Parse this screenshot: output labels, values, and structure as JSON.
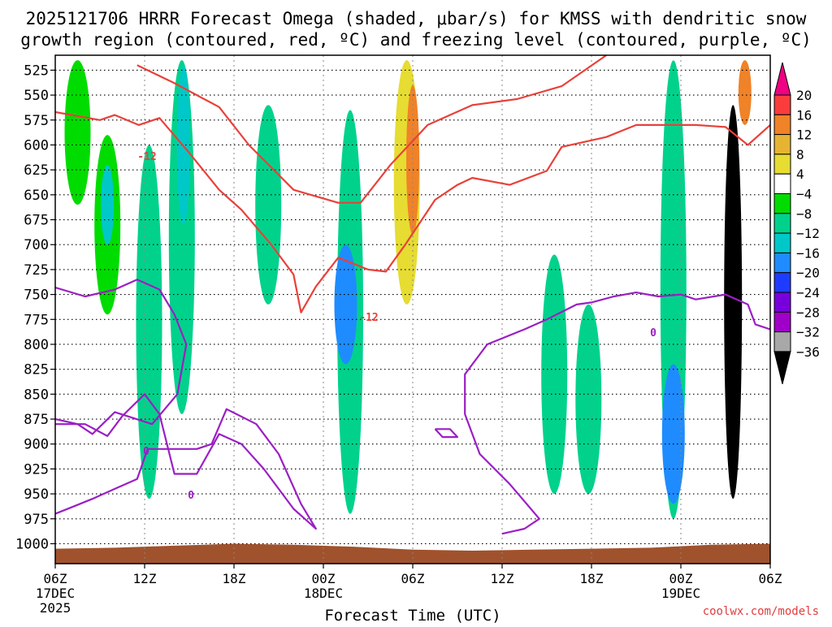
{
  "chart_data": {
    "type": "heatmap",
    "title_line1": "2025121706 HRRR Forecast Omega (shaded, μbar/s) for KMSS with dendritic snow",
    "title_line2": "growth region (contoured, red, ºC) and freezing level (contoured, purple, ºC)",
    "xlabel": "Forecast Time (UTC)",
    "credit": "coolwx.com/models",
    "y_axis": {
      "unit": "hPa",
      "range": [
        1020,
        510
      ],
      "ticks": [
        "525",
        "550",
        "575",
        "600",
        "625",
        "650",
        "675",
        "700",
        "725",
        "750",
        "775",
        "800",
        "825",
        "850",
        "875",
        "900",
        "925",
        "950",
        "975",
        "1000"
      ]
    },
    "x_axis": {
      "unit": "forecast hour",
      "range": [
        0,
        48
      ],
      "ticks": [
        {
          "hour": 0,
          "label": "06Z",
          "sub1": "17DEC",
          "sub2": "2025"
        },
        {
          "hour": 6,
          "label": "12Z",
          "sub1": "",
          "sub2": ""
        },
        {
          "hour": 12,
          "label": "18Z",
          "sub1": "",
          "sub2": ""
        },
        {
          "hour": 18,
          "label": "00Z",
          "sub1": "18DEC",
          "sub2": ""
        },
        {
          "hour": 24,
          "label": "06Z",
          "sub1": "",
          "sub2": ""
        },
        {
          "hour": 30,
          "label": "12Z",
          "sub1": "",
          "sub2": ""
        },
        {
          "hour": 36,
          "label": "18Z",
          "sub1": "",
          "sub2": ""
        },
        {
          "hour": 42,
          "label": "00Z",
          "sub1": "19DEC",
          "sub2": ""
        },
        {
          "hour": 48,
          "label": "06Z",
          "sub1": "",
          "sub2": ""
        }
      ]
    },
    "colorbar": {
      "labels": [
        "20",
        "16",
        "12",
        "8",
        "4",
        "−4",
        "−8",
        "−12",
        "−16",
        "−20",
        "−24",
        "−28",
        "−32",
        "−36"
      ],
      "colors": [
        "#f0f0f0",
        "#e8e8e8",
        "#a8a8a8",
        "#a000c8",
        "#7800dc",
        "#1e3cff",
        "#1e8cff",
        "#00c8c8",
        "#00d28c",
        "#00dc00",
        "#ffffff",
        "#e6dc32",
        "#e6b432",
        "#f08228",
        "#fa3c3c",
        "#f00082"
      ]
    },
    "contour_labels": {
      "dgz": [
        "-12",
        "-12"
      ],
      "freezing": [
        "0",
        "0",
        "0"
      ]
    },
    "omega_features": [
      {
        "name": "green-column-h1",
        "hour": 1.5,
        "p_top": 515,
        "p_bot": 660,
        "value": -6
      },
      {
        "name": "green-column-h3.5",
        "hour": 3.5,
        "p_top": 590,
        "p_bot": 770,
        "value": -7
      },
      {
        "name": "cyan-core-h3.5",
        "hour": 3.5,
        "p_top": 620,
        "p_bot": 700,
        "value": -12
      },
      {
        "name": "green-column-h6",
        "hour": 6.3,
        "p_top": 600,
        "p_bot": 955,
        "value": -8
      },
      {
        "name": "green-column-h8.5",
        "hour": 8.5,
        "p_top": 515,
        "p_bot": 870,
        "value": -8
      },
      {
        "name": "cyan-core-h8.5",
        "hour": 8.6,
        "p_top": 520,
        "p_bot": 680,
        "value": -12
      },
      {
        "name": "green-column-h14.5",
        "hour": 14.3,
        "p_top": 560,
        "p_bot": 760,
        "value": -8
      },
      {
        "name": "green-column-h20",
        "hour": 19.8,
        "p_top": 565,
        "p_bot": 970,
        "value": -10
      },
      {
        "name": "blue-core-h20",
        "hour": 19.5,
        "p_top": 700,
        "p_bot": 820,
        "value": -18
      },
      {
        "name": "yellow-column-h23.5",
        "hour": 23.6,
        "p_top": 515,
        "p_bot": 760,
        "value": 6
      },
      {
        "name": "orange-core-h23.5",
        "hour": 24.0,
        "p_top": 540,
        "p_bot": 690,
        "value": 12
      },
      {
        "name": "green-column-h33",
        "hour": 33.5,
        "p_top": 710,
        "p_bot": 950,
        "value": -9
      },
      {
        "name": "green-column-h36",
        "hour": 35.8,
        "p_top": 760,
        "p_bot": 950,
        "value": -10
      },
      {
        "name": "green-column-h41",
        "hour": 41.5,
        "p_top": 515,
        "p_bot": 975,
        "value": -10
      },
      {
        "name": "blue-core-h42",
        "hour": 41.5,
        "p_top": 820,
        "p_bot": 960,
        "value": -18
      },
      {
        "name": "black-core-h45.5",
        "hour": 45.5,
        "p_top": 560,
        "p_bot": 955,
        "value": -40
      },
      {
        "name": "orange-streak-h46",
        "hour": 46.3,
        "p_top": 515,
        "p_bot": 580,
        "value": 14
      }
    ],
    "dgz_contours": [
      {
        "name": "m12-upper",
        "points": [
          [
            5.5,
            520
          ],
          [
            8,
            538
          ],
          [
            11,
            562
          ],
          [
            13,
            600
          ],
          [
            16,
            645
          ],
          [
            19,
            658
          ],
          [
            20.5,
            658
          ],
          [
            22.5,
            620
          ],
          [
            25,
            580
          ],
          [
            28,
            560
          ],
          [
            31,
            554
          ],
          [
            34,
            541
          ],
          [
            37,
            510
          ]
        ]
      },
      {
        "name": "m12-lower",
        "points": [
          [
            0,
            567
          ],
          [
            3,
            575
          ],
          [
            4,
            570
          ],
          [
            5.6,
            580
          ],
          [
            7,
            573
          ],
          [
            9,
            608
          ],
          [
            11,
            645
          ],
          [
            12.5,
            665
          ],
          [
            14.5,
            700
          ],
          [
            16,
            730
          ],
          [
            16.5,
            768
          ],
          [
            17.5,
            742
          ],
          [
            19,
            713
          ],
          [
            21,
            725
          ],
          [
            22.2,
            727
          ],
          [
            23.5,
            700
          ],
          [
            25.5,
            655
          ],
          [
            27,
            640
          ],
          [
            28,
            633
          ],
          [
            30.5,
            640
          ],
          [
            33,
            626
          ],
          [
            34,
            602
          ],
          [
            37,
            592
          ],
          [
            39,
            580
          ],
          [
            43,
            580
          ],
          [
            45,
            582
          ],
          [
            46.5,
            600
          ],
          [
            48,
            580
          ]
        ]
      }
    ],
    "freezing_contours": [
      {
        "name": "zero-upper",
        "points": [
          [
            0,
            743
          ],
          [
            2,
            752
          ],
          [
            4,
            745
          ],
          [
            5.5,
            735
          ],
          [
            7,
            745
          ],
          [
            8,
            770
          ],
          [
            8.8,
            800
          ],
          [
            8.2,
            850
          ],
          [
            6.5,
            880
          ],
          [
            4,
            868
          ],
          [
            2.5,
            890
          ],
          [
            1.5,
            880
          ],
          [
            0,
            875
          ]
        ]
      },
      {
        "name": "zero-loop-small",
        "points": [
          [
            0,
            880
          ],
          [
            2,
            880
          ],
          [
            3.5,
            892
          ],
          [
            4.5,
            872
          ],
          [
            6,
            850
          ],
          [
            7,
            870
          ],
          [
            8,
            930
          ],
          [
            9.5,
            930
          ],
          [
            11,
            890
          ],
          [
            12.5,
            900
          ],
          [
            14,
            925
          ],
          [
            16,
            965
          ],
          [
            17.5,
            985
          ],
          [
            16.5,
            960
          ],
          [
            15,
            910
          ],
          [
            13.5,
            880
          ],
          [
            11.5,
            865
          ],
          [
            10.5,
            900
          ],
          [
            9.5,
            905
          ],
          [
            8,
            905
          ],
          [
            6.2,
            905
          ],
          [
            5.5,
            935
          ],
          [
            4,
            945
          ],
          [
            2.5,
            955
          ],
          [
            1,
            964
          ],
          [
            0,
            970
          ]
        ]
      },
      {
        "name": "zero-lower",
        "points": [
          [
            30,
            990
          ],
          [
            31.5,
            985
          ],
          [
            32.5,
            975
          ],
          [
            30.5,
            940
          ],
          [
            28.5,
            910
          ],
          [
            27.5,
            870
          ],
          [
            27.5,
            830
          ],
          [
            29,
            800
          ],
          [
            31.5,
            785
          ],
          [
            33,
            775
          ],
          [
            35,
            760
          ],
          [
            36,
            758
          ],
          [
            37.5,
            752
          ],
          [
            39,
            748
          ],
          [
            40.5,
            752
          ],
          [
            42,
            750
          ],
          [
            43,
            755
          ],
          [
            45,
            750
          ],
          [
            46.5,
            760
          ],
          [
            47,
            780
          ],
          [
            48,
            785
          ]
        ]
      },
      {
        "name": "zero-blob",
        "points": [
          [
            25.5,
            885
          ],
          [
            26.5,
            885
          ],
          [
            27,
            893
          ],
          [
            26,
            893
          ],
          [
            25.5,
            885
          ]
        ]
      }
    ],
    "terrain": {
      "color": "#a0522d",
      "surface_pressure_hPa": [
        1005,
        1004,
        1002,
        1000,
        1001,
        1003,
        1006,
        1007,
        1006,
        1005,
        1004,
        1001,
        1000
      ]
    }
  }
}
